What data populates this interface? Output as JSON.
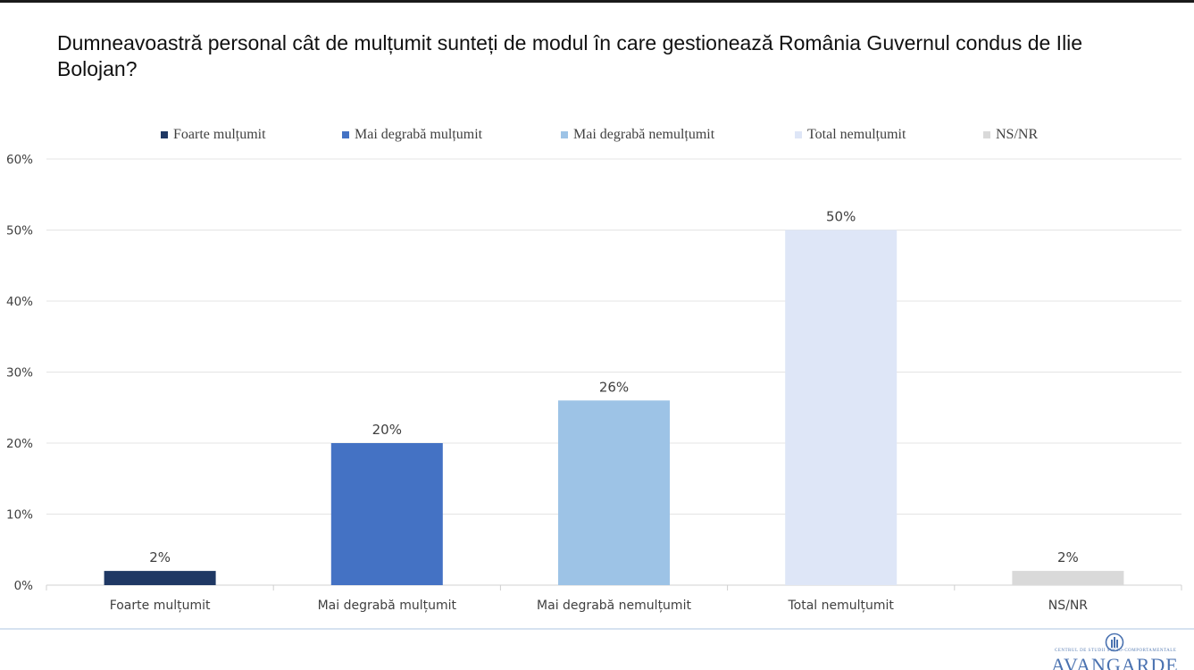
{
  "title": "Dumneavoastră personal cât de mulțumit sunteți de modul în care gestionează România Guvernul condus de Ilie Bolojan?",
  "chart_data": {
    "type": "bar",
    "title": "Dumneavoastră personal cât de mulțumit sunteți de modul în care gestionează România Guvernul condus de Ilie Bolojan?",
    "categories": [
      "Foarte mulțumit",
      "Mai degrabă mulțumit",
      "Mai degrabă nemulțumit",
      "Total nemulțumit",
      "NS/NR"
    ],
    "values": [
      2,
      20,
      26,
      50,
      2
    ],
    "value_labels": [
      "2%",
      "20%",
      "26%",
      "50%",
      "2%"
    ],
    "colors": [
      "#1f3864",
      "#4472c4",
      "#9dc3e6",
      "#dee6f7",
      "#d9d9d9"
    ],
    "ylim": [
      0,
      60
    ],
    "yticks": [
      "0%",
      "10%",
      "20%",
      "30%",
      "40%",
      "50%",
      "60%"
    ],
    "xlabel": "",
    "ylabel": "",
    "legend": [
      "Foarte mulțumit",
      "Mai degrabă mulțumit",
      "Mai degrabă nemulțumit",
      "Total nemulțumit",
      "NS/NR"
    ],
    "legend_position": "top",
    "grid": true
  },
  "logo": {
    "name": "AVANGARDE",
    "subtitle": "CENTRUL DE STUDII SOCIO-COMPORTAMENTALE",
    "color": "#4a72b0"
  }
}
